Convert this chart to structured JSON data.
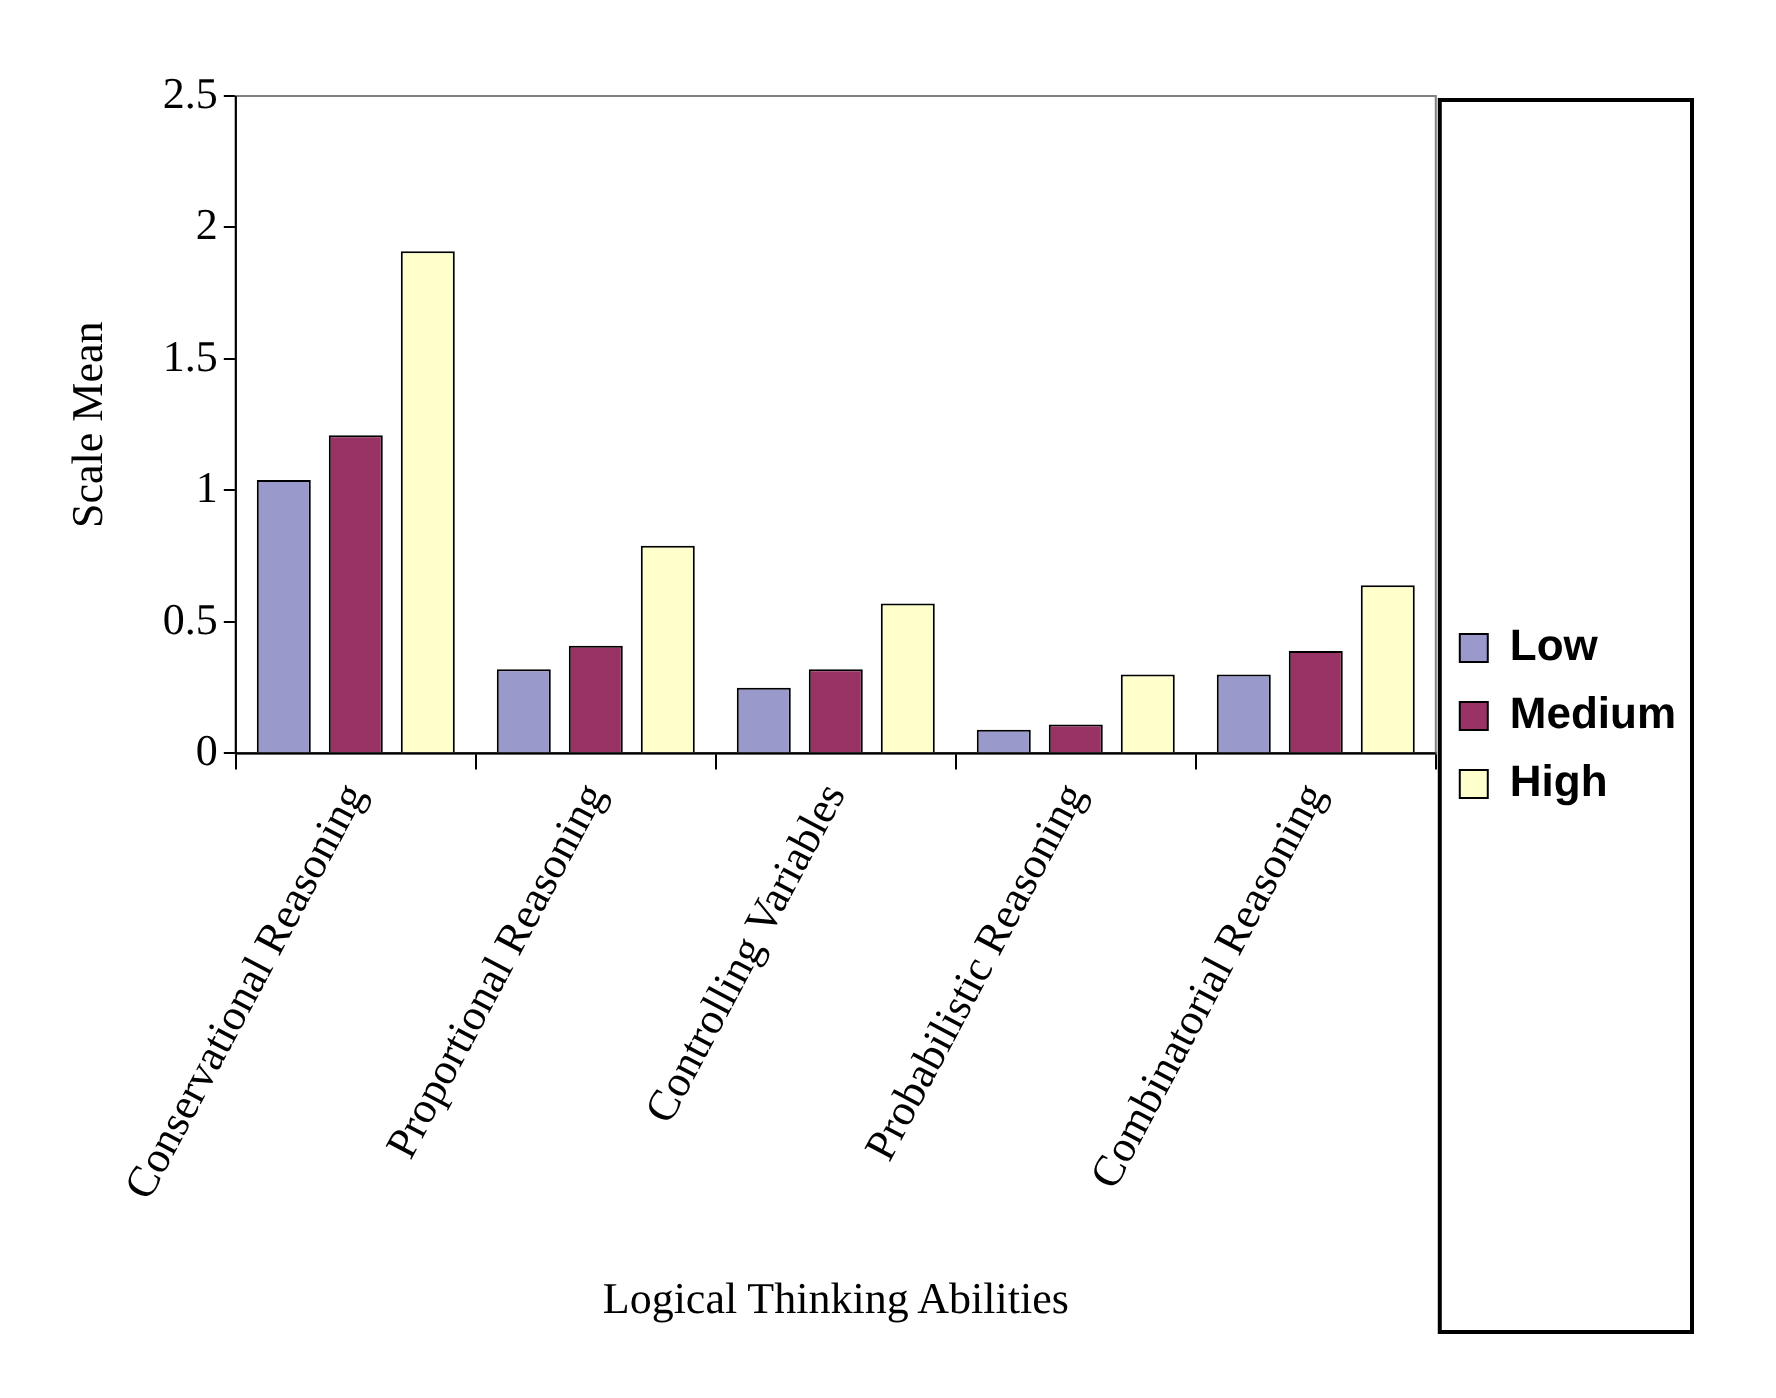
{
  "chart_data": {
    "type": "bar",
    "xlabel": "Logical Thinking Abilities",
    "ylabel": "Scale Mean",
    "categories": [
      "Conservational Reasoning",
      "Proportional Reasoning",
      "Controlling Variables",
      "Probabilistic Reasoning",
      "Combinatorial Reasoning"
    ],
    "series": [
      {
        "name": "Low",
        "color": "#9999cc",
        "values": [
          1.04,
          0.32,
          0.25,
          0.09,
          0.3
        ]
      },
      {
        "name": "Medium",
        "color": "#993366",
        "values": [
          1.21,
          0.41,
          0.32,
          0.11,
          0.39
        ]
      },
      {
        "name": "High",
        "color": "#ffffcc",
        "values": [
          1.91,
          0.79,
          0.57,
          0.3,
          0.64
        ]
      }
    ],
    "ylim": [
      0,
      2.5
    ],
    "yticks": [
      0,
      0.5,
      1,
      1.5,
      2,
      2.5
    ],
    "legend": "right",
    "grid": false
  }
}
